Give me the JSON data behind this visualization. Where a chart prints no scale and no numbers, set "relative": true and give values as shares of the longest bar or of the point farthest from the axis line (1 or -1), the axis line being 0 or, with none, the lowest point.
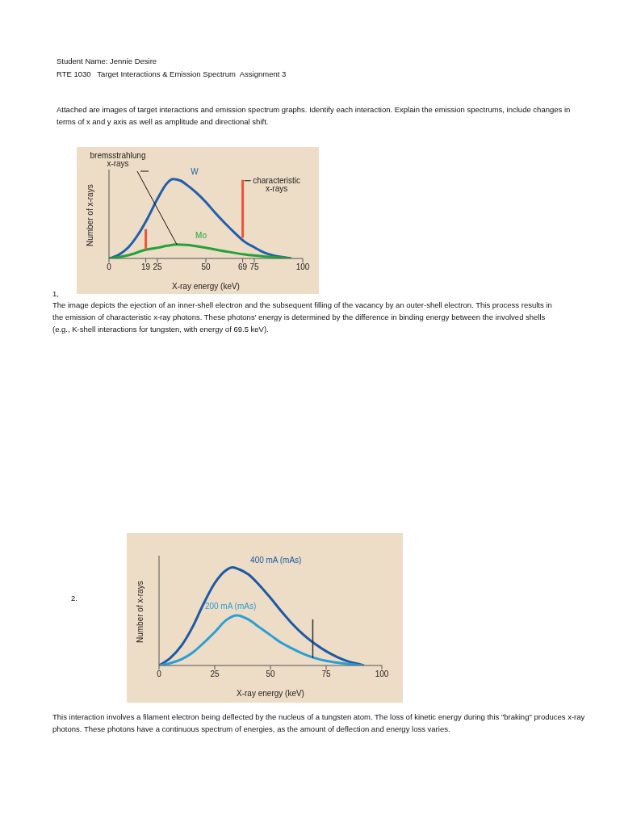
{
  "chart_data": [
    {
      "type": "line",
      "xlabel": "X-ray energy (keV)",
      "ylabel": "Number of x-rays",
      "relative": true,
      "xlim": [
        0,
        100
      ],
      "xticks": [
        0,
        19,
        25,
        50,
        69,
        75,
        100
      ],
      "grid": false,
      "legend": false,
      "marker": "none",
      "annotations": [
        "Student Name: Jennie Desire",
        "RTE 1030   Target Interactions & Emission Spectrum  Assignment 3",
        "Attached are images of target interactions and emission spectrum graphs.  Identify each interaction.  Explain the emission spectrums, include changes in terms of x and y axis as well as amplitude and directional shift.",
        "1,",
        "The image depicts the ejection of an inner-shell electron and the subsequent filling of the vacancy by an outer-shell electron. This process results in the emission of characteristic x-ray photons. These photons' energy is determined by the difference in binding energy between the involved shells (e.g., K-shell interactions for tungsten, with energy of 69.5 keV).",
        {
          "text": "bremsstrahlung x-rays",
          "x": 35,
          "y": 0.175
        },
        {
          "text": "characteristic x-rays",
          "x": 69,
          "y": 0.99
        }
      ],
      "series": [
        {
          "name": "W",
          "color": "#1f5fad",
          "x": [
            0,
            5,
            10,
            15,
            20,
            25,
            30,
            33,
            37,
            40,
            45,
            50,
            55,
            60,
            65,
            70,
            75,
            80,
            85,
            90,
            94
          ],
          "values": [
            0,
            0.045,
            0.14,
            0.3,
            0.51,
            0.75,
            0.95,
            1,
            0.98,
            0.93,
            0.83,
            0.71,
            0.57,
            0.44,
            0.32,
            0.21,
            0.14,
            0.075,
            0.036,
            0.015,
            0
          ]
        },
        {
          "name": "Mo",
          "color": "#22a23a",
          "x": [
            0,
            10,
            19,
            25,
            30,
            35,
            40,
            50,
            60,
            70,
            80,
            90,
            94
          ],
          "values": [
            0,
            0.04,
            0.11,
            0.135,
            0.16,
            0.175,
            0.17,
            0.135,
            0.09,
            0.05,
            0.025,
            0.01,
            0
          ]
        },
        {
          "type": "line",
          "color": "#e8553a",
          "x": [
            19,
            19
          ],
          "values": [
            0.11,
            0.37
          ]
        },
        {
          "type": "line",
          "color": "#e8553a",
          "x": [
            69,
            69
          ],
          "values": [
            0.26,
            0.99
          ]
        }
      ]
    },
    {
      "type": "line",
      "xlabel": "X-ray energy (keV)",
      "ylabel": "Number of x-rays",
      "relative": true,
      "xlim": [
        0,
        100
      ],
      "xticks": [
        0,
        25,
        50,
        75,
        100
      ],
      "grid": false,
      "legend": false,
      "marker": "none",
      "annotations": [
        "2.",
        "This interaction involves a filament electron being deflected by the nucleus of a tungsten atom. The loss of kinetic energy during this \"braking\" produces x-ray photons. These photons have a continuous spectrum of energies, as the amount of deflection and energy loss varies."
      ],
      "series": [
        {
          "name": "400 mA (mAs)",
          "color": "#1b5aa5",
          "x": [
            0,
            5,
            10,
            15,
            20,
            25,
            30,
            33,
            36,
            40,
            45,
            50,
            55,
            60,
            65,
            70,
            75,
            80,
            85,
            90,
            92
          ],
          "values": [
            0,
            0.075,
            0.2,
            0.39,
            0.63,
            0.84,
            0.97,
            1,
            0.98,
            0.93,
            0.82,
            0.69,
            0.55,
            0.42,
            0.31,
            0.22,
            0.145,
            0.086,
            0.04,
            0.012,
            0
          ]
        },
        {
          "name": "200 mA (mAs)",
          "color": "#2a9fd6",
          "x": [
            0,
            5,
            10,
            15,
            20,
            25,
            30,
            35,
            40,
            45,
            50,
            55,
            60,
            65,
            70,
            75,
            80,
            85,
            92
          ],
          "values": [
            0,
            0.023,
            0.063,
            0.13,
            0.23,
            0.34,
            0.46,
            0.51,
            0.47,
            0.39,
            0.31,
            0.23,
            0.17,
            0.117,
            0.075,
            0.047,
            0.028,
            0.014,
            0
          ]
        },
        {
          "type": "line",
          "color": "#333333",
          "x": [
            69,
            69
          ],
          "values": [
            0.075,
            0.47
          ]
        }
      ]
    }
  ]
}
